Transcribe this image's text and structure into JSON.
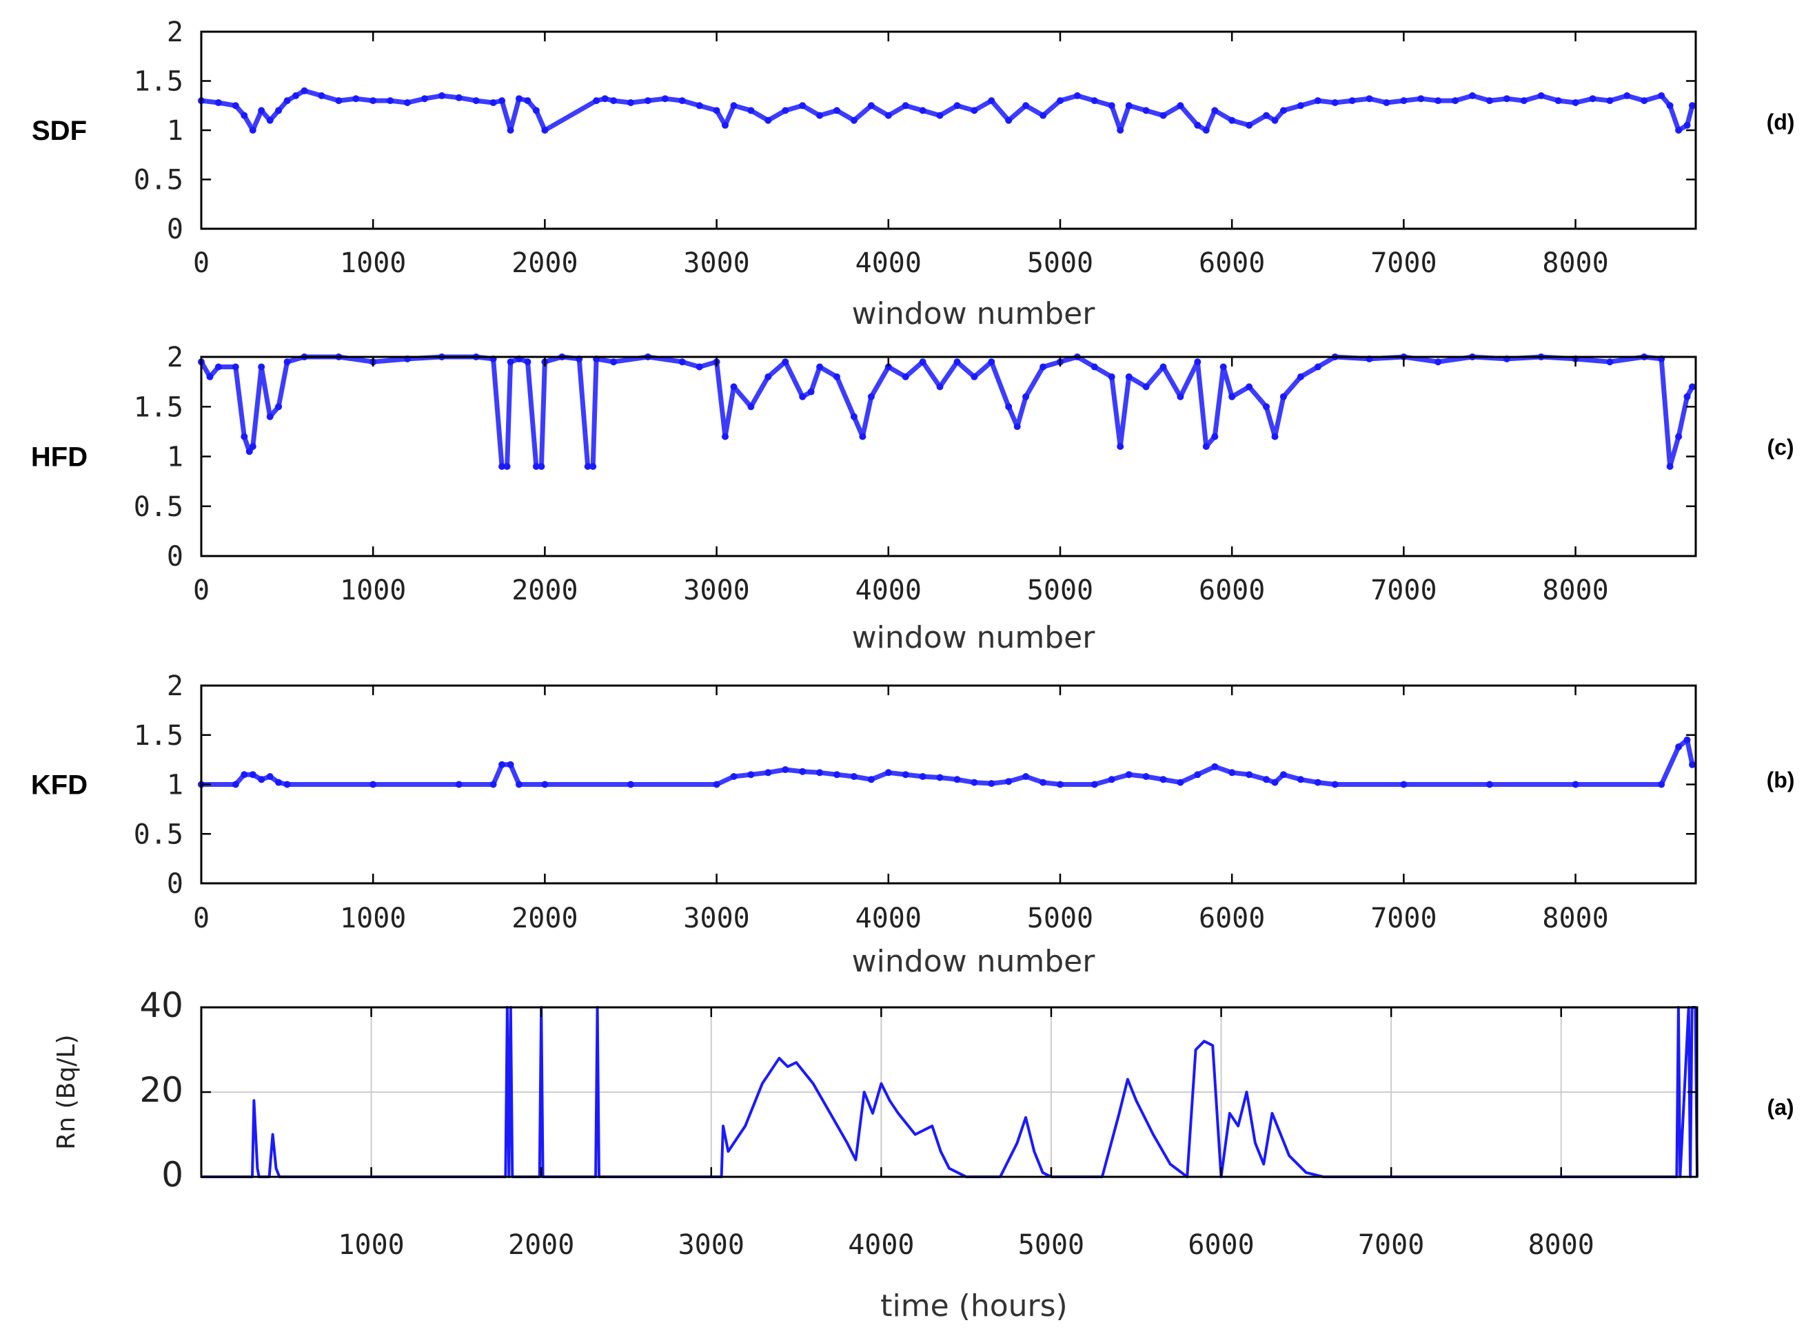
{
  "chart_data": [
    {
      "id": "sdf",
      "type": "scatter",
      "panel_label": "(d)",
      "ylabel": "SDF",
      "xlabel": "window number",
      "xlim": [
        0,
        8700
      ],
      "ylim": [
        0,
        2
      ],
      "x_ticks": [
        0,
        1000,
        2000,
        3000,
        4000,
        5000,
        6000,
        7000,
        8000
      ],
      "y_ticks": [
        "0",
        "0.5",
        "1",
        "1.5",
        "2"
      ],
      "color": "#1a1aff",
      "x": [
        0,
        100,
        200,
        250,
        300,
        350,
        400,
        450,
        500,
        550,
        600,
        700,
        800,
        900,
        1000,
        1100,
        1200,
        1300,
        1400,
        1500,
        1600,
        1700,
        1750,
        1800,
        1850,
        1900,
        1950,
        2000,
        2300,
        2350,
        2400,
        2500,
        2600,
        2700,
        2800,
        2900,
        3000,
        3050,
        3100,
        3200,
        3300,
        3400,
        3500,
        3600,
        3700,
        3800,
        3900,
        4000,
        4100,
        4200,
        4300,
        4400,
        4500,
        4600,
        4700,
        4800,
        4900,
        5000,
        5100,
        5200,
        5300,
        5350,
        5400,
        5500,
        5600,
        5700,
        5800,
        5850,
        5900,
        6000,
        6100,
        6200,
        6250,
        6300,
        6400,
        6500,
        6600,
        6700,
        6800,
        6900,
        7000,
        7100,
        7200,
        7300,
        7400,
        7500,
        7600,
        7700,
        7800,
        7900,
        8000,
        8100,
        8200,
        8300,
        8400,
        8500,
        8550,
        8600,
        8650,
        8680
      ],
      "y": [
        1.3,
        1.28,
        1.25,
        1.15,
        1.0,
        1.2,
        1.1,
        1.2,
        1.3,
        1.35,
        1.4,
        1.35,
        1.3,
        1.32,
        1.3,
        1.3,
        1.28,
        1.32,
        1.35,
        1.33,
        1.3,
        1.28,
        1.3,
        1.0,
        1.32,
        1.3,
        1.2,
        1.0,
        1.3,
        1.32,
        1.3,
        1.28,
        1.3,
        1.32,
        1.3,
        1.25,
        1.2,
        1.05,
        1.25,
        1.2,
        1.1,
        1.2,
        1.25,
        1.15,
        1.2,
        1.1,
        1.25,
        1.15,
        1.25,
        1.2,
        1.15,
        1.25,
        1.2,
        1.3,
        1.1,
        1.25,
        1.15,
        1.3,
        1.35,
        1.3,
        1.25,
        1.0,
        1.25,
        1.2,
        1.15,
        1.25,
        1.05,
        1.0,
        1.2,
        1.1,
        1.05,
        1.15,
        1.1,
        1.2,
        1.25,
        1.3,
        1.28,
        1.3,
        1.32,
        1.28,
        1.3,
        1.32,
        1.3,
        1.3,
        1.35,
        1.3,
        1.32,
        1.3,
        1.35,
        1.3,
        1.28,
        1.32,
        1.3,
        1.35,
        1.3,
        1.35,
        1.25,
        1.0,
        1.05,
        1.25
      ]
    },
    {
      "id": "hfd",
      "type": "scatter",
      "panel_label": "(c)",
      "ylabel": "HFD",
      "xlabel": "window number",
      "xlim": [
        0,
        8700
      ],
      "ylim": [
        0,
        2
      ],
      "x_ticks": [
        0,
        1000,
        2000,
        3000,
        4000,
        5000,
        6000,
        7000,
        8000
      ],
      "y_ticks": [
        "0",
        "0.5",
        "1",
        "1.5",
        "2"
      ],
      "color": "#1a1aff",
      "x": [
        0,
        50,
        100,
        200,
        250,
        280,
        300,
        350,
        400,
        450,
        500,
        600,
        800,
        1000,
        1200,
        1400,
        1600,
        1700,
        1750,
        1780,
        1800,
        1850,
        1900,
        1950,
        1980,
        2000,
        2100,
        2200,
        2250,
        2280,
        2300,
        2400,
        2600,
        2800,
        2900,
        3000,
        3050,
        3100,
        3200,
        3300,
        3400,
        3500,
        3550,
        3600,
        3700,
        3800,
        3850,
        3900,
        4000,
        4100,
        4200,
        4300,
        4400,
        4500,
        4600,
        4700,
        4750,
        4800,
        4900,
        5000,
        5100,
        5200,
        5300,
        5350,
        5400,
        5500,
        5600,
        5700,
        5800,
        5850,
        5900,
        5950,
        6000,
        6100,
        6200,
        6250,
        6300,
        6400,
        6500,
        6600,
        6800,
        7000,
        7200,
        7400,
        7600,
        7800,
        8000,
        8200,
        8400,
        8500,
        8550,
        8600,
        8650,
        8680
      ],
      "y": [
        1.95,
        1.8,
        1.9,
        1.9,
        1.2,
        1.05,
        1.1,
        1.9,
        1.4,
        1.5,
        1.95,
        2.0,
        2.0,
        1.95,
        1.98,
        2.0,
        2.0,
        1.98,
        0.9,
        0.9,
        1.95,
        1.98,
        1.95,
        0.9,
        0.9,
        1.95,
        2.0,
        1.98,
        0.9,
        0.9,
        1.98,
        1.95,
        2.0,
        1.95,
        1.9,
        1.95,
        1.2,
        1.7,
        1.5,
        1.8,
        1.95,
        1.6,
        1.65,
        1.9,
        1.8,
        1.4,
        1.2,
        1.6,
        1.9,
        1.8,
        1.95,
        1.7,
        1.95,
        1.8,
        1.95,
        1.5,
        1.3,
        1.6,
        1.9,
        1.95,
        2.0,
        1.9,
        1.8,
        1.1,
        1.8,
        1.7,
        1.9,
        1.6,
        1.95,
        1.1,
        1.2,
        1.9,
        1.6,
        1.7,
        1.5,
        1.2,
        1.6,
        1.8,
        1.9,
        2.0,
        1.98,
        2.0,
        1.95,
        2.0,
        1.98,
        2.0,
        1.98,
        1.95,
        2.0,
        1.98,
        0.9,
        1.2,
        1.6,
        1.7
      ]
    },
    {
      "id": "kfd",
      "type": "scatter",
      "panel_label": "(b)",
      "ylabel": "KFD",
      "xlabel": "window number",
      "xlim": [
        0,
        8700
      ],
      "ylim": [
        0,
        2
      ],
      "x_ticks": [
        0,
        1000,
        2000,
        3000,
        4000,
        5000,
        6000,
        7000,
        8000
      ],
      "y_ticks": [
        "0",
        "0.5",
        "1",
        "1.5",
        "2"
      ],
      "color": "#1a1aff",
      "x": [
        0,
        200,
        250,
        300,
        350,
        400,
        450,
        500,
        1000,
        1500,
        1700,
        1750,
        1800,
        1850,
        2000,
        2500,
        3000,
        3100,
        3200,
        3300,
        3400,
        3500,
        3600,
        3700,
        3800,
        3900,
        4000,
        4100,
        4200,
        4300,
        4400,
        4500,
        4600,
        4700,
        4800,
        4900,
        5000,
        5200,
        5300,
        5400,
        5500,
        5600,
        5700,
        5800,
        5900,
        6000,
        6100,
        6200,
        6250,
        6300,
        6400,
        6500,
        6600,
        7000,
        7500,
        8000,
        8500,
        8600,
        8650,
        8680
      ],
      "y": [
        1.0,
        1.0,
        1.1,
        1.1,
        1.05,
        1.08,
        1.02,
        1.0,
        1.0,
        1.0,
        1.0,
        1.2,
        1.2,
        1.0,
        1.0,
        1.0,
        1.0,
        1.08,
        1.1,
        1.12,
        1.15,
        1.13,
        1.12,
        1.1,
        1.08,
        1.05,
        1.12,
        1.1,
        1.08,
        1.07,
        1.05,
        1.02,
        1.01,
        1.03,
        1.08,
        1.02,
        1.0,
        1.0,
        1.05,
        1.1,
        1.08,
        1.05,
        1.02,
        1.1,
        1.18,
        1.12,
        1.1,
        1.05,
        1.02,
        1.1,
        1.05,
        1.02,
        1.0,
        1.0,
        1.0,
        1.0,
        1.0,
        1.38,
        1.45,
        1.2
      ]
    },
    {
      "id": "rn",
      "type": "line",
      "panel_label": "(a)",
      "ylabel": "Rn (Bq/L)",
      "xlabel": "time (hours)",
      "xlim": [
        0,
        8800
      ],
      "ylim": [
        0,
        40
      ],
      "x_ticks": [
        1000,
        2000,
        3000,
        4000,
        5000,
        6000,
        7000,
        8000
      ],
      "y_ticks": [
        "0",
        "20",
        "40"
      ],
      "grid": true,
      "color": "#1a1aff",
      "x": [
        0,
        300,
        310,
        320,
        330,
        340,
        400,
        420,
        440,
        460,
        480,
        1000,
        1500,
        1790,
        1800,
        1810,
        1820,
        1830,
        1990,
        2000,
        2010,
        2320,
        2330,
        2340,
        3000,
        3060,
        3070,
        3100,
        3200,
        3300,
        3400,
        3450,
        3500,
        3600,
        3700,
        3800,
        3850,
        3900,
        3950,
        4000,
        4050,
        4100,
        4200,
        4300,
        4350,
        4400,
        4500,
        4600,
        4700,
        4800,
        4850,
        4900,
        4950,
        5000,
        5300,
        5400,
        5450,
        5500,
        5600,
        5700,
        5800,
        5850,
        5900,
        5950,
        6000,
        6050,
        6100,
        6150,
        6200,
        6250,
        6300,
        6350,
        6400,
        6500,
        6600,
        7000,
        8000,
        8600,
        8680,
        8690,
        8700,
        8750,
        8760,
        8770,
        8790,
        8800
      ],
      "y": [
        0,
        0,
        18,
        10,
        2,
        0,
        0,
        10,
        2,
        0,
        0,
        0,
        0,
        0,
        40,
        0,
        40,
        0,
        0,
        40,
        0,
        0,
        40,
        0,
        0,
        0,
        12,
        6,
        12,
        22,
        28,
        26,
        27,
        22,
        15,
        8,
        4,
        20,
        15,
        22,
        18,
        15,
        10,
        12,
        6,
        2,
        0,
        0,
        0,
        8,
        14,
        6,
        1,
        0,
        0,
        15,
        23,
        18,
        10,
        3,
        0,
        30,
        32,
        31,
        0,
        15,
        12,
        20,
        8,
        3,
        15,
        10,
        5,
        1,
        0,
        0,
        0,
        0,
        0,
        40,
        0,
        40,
        0,
        40,
        40,
        0
      ]
    }
  ]
}
